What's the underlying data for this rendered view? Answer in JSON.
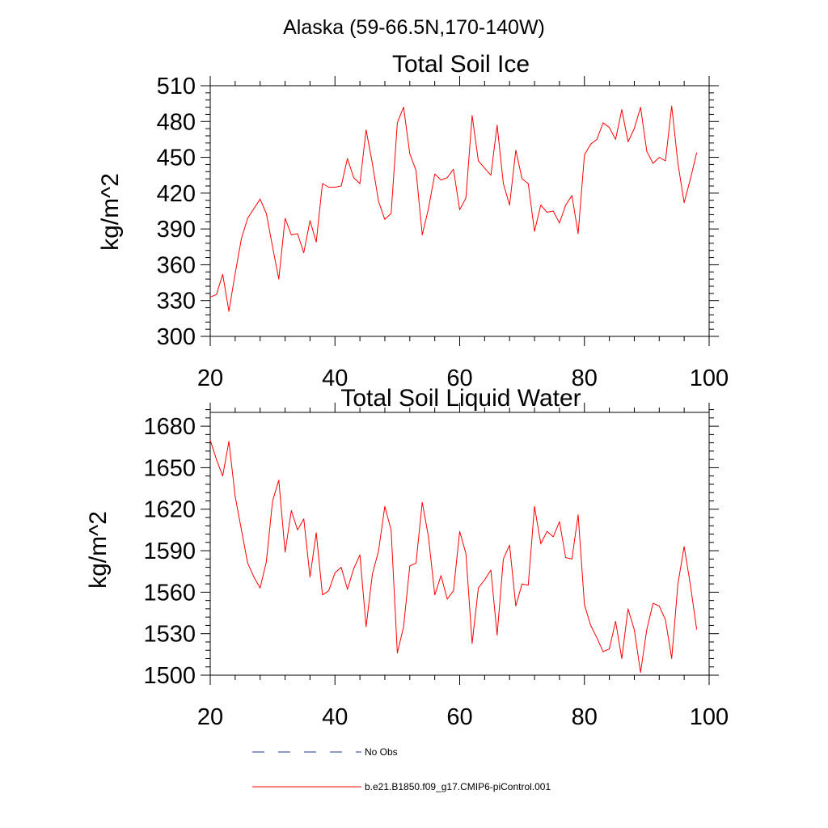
{
  "figure_title": "Alaska (59-66.5N,170-140W)",
  "colors": {
    "model": "#ff0000",
    "obs": "#1f3a93",
    "axis": "#000000"
  },
  "legend": {
    "items": [
      {
        "label": "No Obs",
        "color": "#1f3a93",
        "style": "dashed"
      },
      {
        "label": "b.e21.B1850.f09_g17.CMIP6-piControl.001",
        "color": "#ff0000",
        "style": "solid"
      }
    ]
  },
  "chart_data": [
    {
      "type": "line",
      "title": "Total Soil Ice",
      "xlabel": "",
      "ylabel": "kg/m^2",
      "xlim": [
        20,
        100
      ],
      "ylim": [
        300,
        510
      ],
      "xticks": [
        20,
        40,
        60,
        80,
        100
      ],
      "yticks": [
        300,
        330,
        360,
        390,
        420,
        450,
        480,
        510
      ],
      "series": [
        {
          "name": "b.e21.B1850.f09_g17.CMIP6-piControl.001",
          "x": [
            20,
            21,
            22,
            23,
            24,
            25,
            26,
            27,
            28,
            29,
            30,
            31,
            32,
            33,
            34,
            35,
            36,
            37,
            38,
            39,
            40,
            41,
            42,
            43,
            44,
            45,
            46,
            47,
            48,
            49,
            50,
            51,
            52,
            53,
            54,
            55,
            56,
            57,
            58,
            59,
            60,
            61,
            62,
            63,
            64,
            65,
            66,
            67,
            68,
            69,
            70,
            71,
            72,
            73,
            74,
            75,
            76,
            77,
            78,
            79,
            80,
            81,
            82,
            83,
            84,
            85,
            86,
            87,
            88,
            89,
            90,
            91,
            92,
            93,
            94,
            95,
            96,
            97,
            98
          ],
          "values": [
            333,
            335,
            352,
            321,
            353,
            382,
            399,
            407,
            415,
            403,
            375,
            348,
            399,
            385,
            386,
            370,
            397,
            379,
            428,
            425,
            425,
            426,
            449,
            433,
            428,
            473,
            445,
            413,
            398,
            403,
            479,
            492,
            453,
            439,
            385,
            407,
            436,
            431,
            433,
            440,
            406,
            416,
            485,
            447,
            441,
            435,
            477,
            428,
            410,
            456,
            432,
            428,
            388,
            410,
            404,
            405,
            395,
            410,
            418,
            386,
            452,
            461,
            465,
            479,
            475,
            465,
            490,
            463,
            474,
            492,
            455,
            445,
            450,
            447,
            493,
            445,
            412,
            432,
            454
          ]
        }
      ]
    },
    {
      "type": "line",
      "title": "Total Soil Liquid Water",
      "xlabel": "",
      "ylabel": "kg/m^2",
      "xlim": [
        20,
        100
      ],
      "ylim": [
        1500,
        1690
      ],
      "xticks": [
        20,
        40,
        60,
        80,
        100
      ],
      "yticks": [
        1500,
        1530,
        1560,
        1590,
        1620,
        1650,
        1680
      ],
      "series": [
        {
          "name": "b.e21.B1850.f09_g17.CMIP6-piControl.001",
          "x": [
            20,
            21,
            22,
            23,
            24,
            25,
            26,
            27,
            28,
            29,
            30,
            31,
            32,
            33,
            34,
            35,
            36,
            37,
            38,
            39,
            40,
            41,
            42,
            43,
            44,
            45,
            46,
            47,
            48,
            49,
            50,
            51,
            52,
            53,
            54,
            55,
            56,
            57,
            58,
            59,
            60,
            61,
            62,
            63,
            64,
            65,
            66,
            67,
            68,
            69,
            70,
            71,
            72,
            73,
            74,
            75,
            76,
            77,
            78,
            79,
            80,
            81,
            82,
            83,
            84,
            85,
            86,
            87,
            88,
            89,
            90,
            91,
            92,
            93,
            94,
            95,
            96,
            97,
            98
          ],
          "values": [
            1670,
            1656,
            1644,
            1669,
            1629,
            1605,
            1581,
            1571,
            1563,
            1582,
            1626,
            1641,
            1589,
            1619,
            1605,
            1613,
            1571,
            1603,
            1558,
            1561,
            1574,
            1578,
            1562,
            1577,
            1587,
            1535,
            1573,
            1590,
            1622,
            1605,
            1516,
            1535,
            1579,
            1581,
            1625,
            1600,
            1558,
            1572,
            1555,
            1561,
            1604,
            1588,
            1523,
            1563,
            1569,
            1576,
            1529,
            1584,
            1594,
            1550,
            1566,
            1565,
            1622,
            1595,
            1604,
            1600,
            1611,
            1585,
            1584,
            1616,
            1551,
            1536,
            1527,
            1517,
            1519,
            1539,
            1512,
            1548,
            1533,
            1502,
            1533,
            1552,
            1550,
            1540,
            1512,
            1566,
            1593,
            1565,
            1533
          ]
        }
      ]
    }
  ]
}
